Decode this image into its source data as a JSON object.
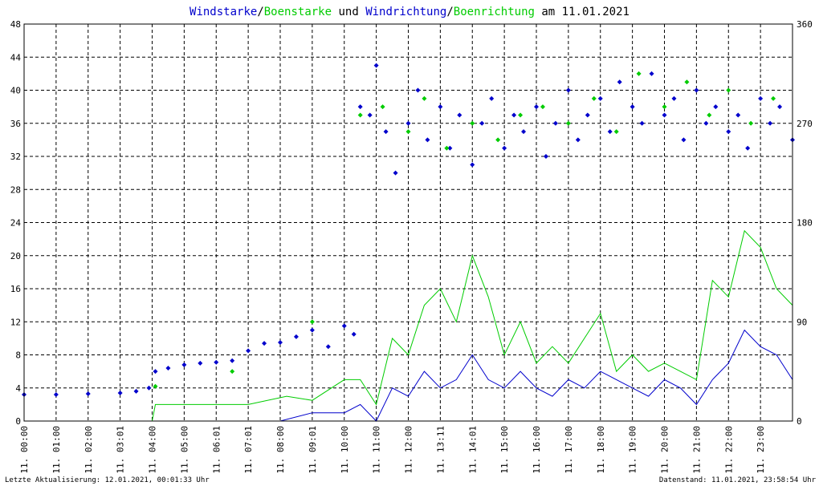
{
  "chart_data": {
    "type": "line",
    "title": {
      "parts": [
        {
          "text": "Windstarke",
          "color": "#0000cc"
        },
        {
          "text": "/",
          "color": "#000000"
        },
        {
          "text": "Boenstarke",
          "color": "#00cc00"
        },
        {
          "text": " und ",
          "color": "#000000"
        },
        {
          "text": "Windrichtung",
          "color": "#0000cc"
        },
        {
          "text": "/",
          "color": "#000000"
        },
        {
          "text": "Boenrichtung",
          "color": "#00cc00"
        },
        {
          "text": " am 11.01.2021",
          "color": "#000000"
        }
      ]
    },
    "y_left": {
      "min": 0,
      "max": 48,
      "ticks": [
        "0",
        "4",
        "8",
        "12",
        "16",
        "20",
        "24",
        "28",
        "32",
        "36",
        "40",
        "44",
        "48"
      ]
    },
    "y_right": {
      "min": 0,
      "max": 360,
      "ticks": [
        "0",
        "90",
        "180",
        "270",
        "360"
      ]
    },
    "x_labels": [
      "11. 00:00",
      "11. 01:00",
      "11. 02:00",
      "11. 03:01",
      "11. 04:00",
      "11. 05:00",
      "11. 06:01",
      "11. 07:01",
      "11. 08:00",
      "11. 09:01",
      "11. 10:00",
      "11. 11:00",
      "11. 12:00",
      "11. 13:11",
      "11. 14:01",
      "11. 15:00",
      "11. 16:00",
      "11. 17:00",
      "11. 18:00",
      "11. 19:00",
      "11. 20:00",
      "11. 21:00",
      "11. 22:00",
      "11. 23:00"
    ],
    "x_range_hours": [
      0,
      24
    ],
    "grid": true,
    "colors": {
      "wind": "#0000cc",
      "gust": "#00cc00",
      "grid": "#000000"
    },
    "series": [
      {
        "name": "Windstarke",
        "kind": "line",
        "color": "#0000cc",
        "x": [
          0,
          3,
          6,
          8,
          9,
          10,
          10.5,
          11,
          11.5,
          12,
          12.5,
          13,
          13.5,
          14,
          14.5,
          15,
          15.5,
          16,
          16.5,
          17,
          17.5,
          18,
          18.5,
          19,
          19.5,
          20,
          20.5,
          21,
          21.5,
          22,
          22.5,
          23,
          23.5,
          24
        ],
        "y": [
          0,
          0,
          0,
          0,
          1,
          1,
          2,
          0,
          4,
          3,
          6,
          4,
          5,
          8,
          5,
          4,
          6,
          4,
          3,
          5,
          4,
          6,
          5,
          4,
          3,
          5,
          4,
          2,
          5,
          7,
          11,
          9,
          8,
          5
        ]
      },
      {
        "name": "Boenstarke",
        "kind": "line",
        "color": "#00cc00",
        "x": [
          0,
          4,
          4.1,
          6,
          7,
          8.2,
          9,
          10,
          10.5,
          11,
          11.5,
          12,
          12.5,
          13,
          13.5,
          14,
          14.5,
          15,
          15.5,
          16,
          16.5,
          17,
          17.5,
          18,
          18.5,
          19,
          19.5,
          20,
          20.5,
          21,
          21.5,
          22,
          22.5,
          23,
          23.5,
          24
        ],
        "y": [
          0,
          0,
          2,
          2,
          2,
          3,
          2.5,
          5,
          5,
          2,
          10,
          8,
          14,
          16,
          12,
          20,
          15,
          8,
          12,
          7,
          9,
          7,
          10,
          13,
          6,
          8,
          6,
          7,
          6,
          5,
          17,
          15,
          23,
          21,
          16,
          14
        ]
      },
      {
        "name": "Windrichtung",
        "kind": "scatter",
        "color": "#0000cc",
        "x": [
          0,
          1,
          2,
          3,
          3.5,
          3.9,
          4.1,
          4.5,
          5,
          5.5,
          6,
          6.5,
          7,
          7.5,
          8,
          8.5,
          9,
          9.5,
          10,
          10.3,
          10.5,
          10.8,
          11,
          11.3,
          11.6,
          12,
          12.3,
          12.6,
          13,
          13.3,
          13.6,
          14,
          14.3,
          14.6,
          15,
          15.3,
          15.6,
          16,
          16.3,
          16.6,
          17,
          17.3,
          17.6,
          18,
          18.3,
          18.6,
          19,
          19.3,
          19.6,
          20,
          20.3,
          20.6,
          21,
          21.3,
          21.6,
          22,
          22.3,
          22.6,
          23,
          23.3,
          23.6,
          24
        ],
        "y": [
          3.2,
          3.2,
          3.3,
          3.4,
          3.6,
          4.0,
          6.0,
          6.4,
          6.8,
          7.0,
          7.1,
          7.3,
          8.5,
          9.4,
          9.5,
          10.2,
          11.0,
          9.0,
          11.5,
          10.5,
          38,
          37,
          43,
          35,
          30,
          36,
          40,
          34,
          38,
          33,
          37,
          31,
          36,
          39,
          33,
          37,
          35,
          38,
          32,
          36,
          40,
          34,
          37,
          39,
          35,
          41,
          38,
          36,
          42,
          37,
          39,
          34,
          40,
          36,
          38,
          35,
          37,
          33,
          39,
          36,
          38,
          34
        ]
      },
      {
        "name": "Boenrichtung",
        "kind": "scatter",
        "color": "#00cc00",
        "x": [
          4.1,
          6.5,
          9,
          10.5,
          11.2,
          12,
          12.5,
          13.2,
          14,
          14.8,
          15.5,
          16.2,
          17,
          17.8,
          18.5,
          19.2,
          20,
          20.7,
          21.4,
          22,
          22.7,
          23.4
        ],
        "y": [
          4.2,
          6.0,
          12.0,
          37,
          38,
          35,
          39,
          33,
          36,
          34,
          37,
          38,
          36,
          39,
          35,
          42,
          38,
          41,
          37,
          40,
          36,
          39
        ]
      }
    ]
  },
  "footer": {
    "left": "Letzte Aktualisierung: 12.01.2021, 00:01:33 Uhr",
    "right": "Datenstand: 11.01.2021, 23:58:54 Uhr"
  }
}
